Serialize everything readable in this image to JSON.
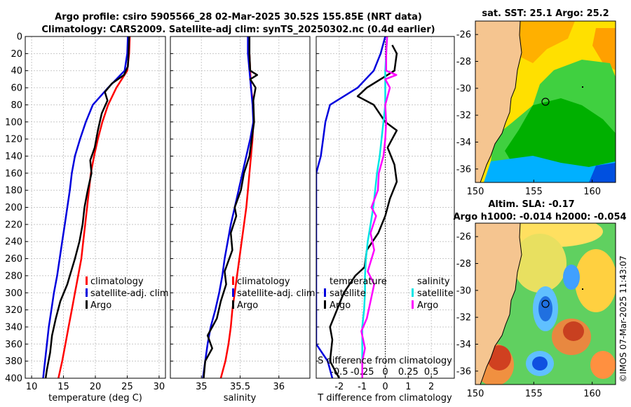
{
  "title": {
    "line1": "Argo profile: csiro 5905566_28 02-Mar-2025 30.52S 155.85E (NRT data)",
    "line2": "Climatology: CARS2009. Satellite-adj clim: synTS_20250302.nc (0.4d earlier)"
  },
  "credit": "©IMOS 07-Mar-2025 11:43:07",
  "colors": {
    "climatology": "#ff0000",
    "satellite": "#0000dd",
    "argo": "#000000",
    "sal_satellite": "#00e5e5",
    "sal_argo": "#ff00ff",
    "land": "#f5c590",
    "coast": "#000000",
    "grid": "#c8c8c8"
  },
  "chart_data": [
    {
      "id": "temperature",
      "type": "line",
      "xlabel": "temperature (deg C)",
      "ylabel": "",
      "xlim": [
        9,
        31
      ],
      "ylim": [
        400,
        0
      ],
      "xticks": [
        10,
        15,
        20,
        25,
        30
      ],
      "yticks": [
        0,
        20,
        40,
        60,
        80,
        100,
        120,
        140,
        160,
        180,
        200,
        220,
        240,
        260,
        280,
        300,
        320,
        340,
        360,
        380,
        400
      ],
      "legend": [
        "climatology",
        "satellite-adj. clim",
        "Argo"
      ],
      "series": [
        {
          "name": "climatology",
          "color": "#ff0000",
          "points": [
            [
              25.4,
              0
            ],
            [
              25.3,
              20
            ],
            [
              25.0,
              40
            ],
            [
              23.3,
              60
            ],
            [
              22.0,
              80
            ],
            [
              21.1,
              100
            ],
            [
              20.4,
              120
            ],
            [
              19.8,
              140
            ],
            [
              19.3,
              160
            ],
            [
              19.0,
              180
            ],
            [
              18.7,
              200
            ],
            [
              18.4,
              220
            ],
            [
              18.1,
              240
            ],
            [
              17.8,
              260
            ],
            [
              17.3,
              280
            ],
            [
              16.8,
              300
            ],
            [
              16.3,
              320
            ],
            [
              15.8,
              340
            ],
            [
              15.3,
              360
            ],
            [
              14.8,
              380
            ],
            [
              14.2,
              400
            ]
          ]
        },
        {
          "name": "satellite-adj. clim",
          "color": "#0000dd",
          "points": [
            [
              25.1,
              0
            ],
            [
              25.0,
              20
            ],
            [
              24.6,
              40
            ],
            [
              22.0,
              60
            ],
            [
              19.6,
              80
            ],
            [
              18.5,
              100
            ],
            [
              17.6,
              120
            ],
            [
              16.8,
              140
            ],
            [
              16.3,
              160
            ],
            [
              16.0,
              180
            ],
            [
              15.6,
              200
            ],
            [
              15.2,
              220
            ],
            [
              14.8,
              240
            ],
            [
              14.4,
              260
            ],
            [
              14.0,
              280
            ],
            [
              13.5,
              300
            ],
            [
              13.1,
              320
            ],
            [
              12.7,
              340
            ],
            [
              12.4,
              360
            ],
            [
              12.1,
              380
            ],
            [
              11.8,
              400
            ]
          ]
        },
        {
          "name": "Argo",
          "color": "#000000",
          "points": [
            [
              25.3,
              0
            ],
            [
              25.2,
              20
            ],
            [
              25.1,
              35
            ],
            [
              24.5,
              45
            ],
            [
              22.6,
              55
            ],
            [
              21.5,
              65
            ],
            [
              21.9,
              75
            ],
            [
              21.0,
              90
            ],
            [
              20.4,
              110
            ],
            [
              19.9,
              130
            ],
            [
              19.2,
              145
            ],
            [
              19.4,
              160
            ],
            [
              18.8,
              180
            ],
            [
              18.3,
              200
            ],
            [
              18.0,
              220
            ],
            [
              17.5,
              240
            ],
            [
              16.8,
              260
            ],
            [
              16.0,
              280
            ],
            [
              15.6,
              290
            ],
            [
              14.5,
              310
            ],
            [
              13.8,
              330
            ],
            [
              13.2,
              350
            ],
            [
              12.9,
              370
            ],
            [
              12.4,
              390
            ],
            [
              12.2,
              400
            ]
          ]
        }
      ]
    },
    {
      "id": "salinity",
      "type": "line",
      "xlabel": "salinity",
      "ylabel": "",
      "xlim": [
        34.6,
        36.4
      ],
      "ylim": [
        400,
        0
      ],
      "xticks": [
        35,
        35.5,
        36
      ],
      "legend": [
        "climatology",
        "satellite-adj. clim",
        "Argo"
      ],
      "series": [
        {
          "name": "climatology",
          "color": "#ff0000",
          "points": [
            [
              35.6,
              0
            ],
            [
              35.62,
              20
            ],
            [
              35.63,
              40
            ],
            [
              35.64,
              60
            ],
            [
              35.67,
              80
            ],
            [
              35.67,
              100
            ],
            [
              35.66,
              120
            ],
            [
              35.64,
              140
            ],
            [
              35.62,
              160
            ],
            [
              35.6,
              180
            ],
            [
              35.58,
              200
            ],
            [
              35.55,
              220
            ],
            [
              35.52,
              240
            ],
            [
              35.49,
              260
            ],
            [
              35.46,
              280
            ],
            [
              35.43,
              300
            ],
            [
              35.4,
              320
            ],
            [
              35.38,
              340
            ],
            [
              35.35,
              360
            ],
            [
              35.31,
              380
            ],
            [
              35.25,
              400
            ]
          ]
        },
        {
          "name": "satellite-adj. clim",
          "color": "#0000dd",
          "points": [
            [
              35.6,
              0
            ],
            [
              35.6,
              20
            ],
            [
              35.62,
              40
            ],
            [
              35.64,
              60
            ],
            [
              35.66,
              80
            ],
            [
              35.67,
              100
            ],
            [
              35.63,
              120
            ],
            [
              35.58,
              140
            ],
            [
              35.53,
              160
            ],
            [
              35.48,
              180
            ],
            [
              35.43,
              200
            ],
            [
              35.38,
              220
            ],
            [
              35.34,
              240
            ],
            [
              35.3,
              260
            ],
            [
              35.27,
              280
            ],
            [
              35.23,
              300
            ],
            [
              35.18,
              320
            ],
            [
              35.12,
              340
            ],
            [
              35.08,
              360
            ],
            [
              35.05,
              380
            ],
            [
              35.02,
              400
            ]
          ]
        },
        {
          "name": "Argo",
          "color": "#000000",
          "points": [
            [
              35.62,
              0
            ],
            [
              35.62,
              20
            ],
            [
              35.63,
              40
            ],
            [
              35.72,
              45
            ],
            [
              35.63,
              50
            ],
            [
              35.7,
              60
            ],
            [
              35.67,
              75
            ],
            [
              35.68,
              100
            ],
            [
              35.65,
              120
            ],
            [
              35.62,
              140
            ],
            [
              35.55,
              160
            ],
            [
              35.51,
              180
            ],
            [
              35.43,
              200
            ],
            [
              35.45,
              210
            ],
            [
              35.38,
              230
            ],
            [
              35.4,
              250
            ],
            [
              35.3,
              275
            ],
            [
              35.32,
              290
            ],
            [
              35.25,
              310
            ],
            [
              35.2,
              330
            ],
            [
              35.08,
              350
            ],
            [
              35.14,
              365
            ],
            [
              35.05,
              380
            ],
            [
              35.03,
              400
            ]
          ]
        }
      ]
    },
    {
      "id": "difference",
      "type": "line",
      "xlabel": "T difference from climatology",
      "xlabel_top": "S difference from climatology",
      "xlim": [
        -3,
        3
      ],
      "xticks": [
        -2,
        -1,
        0,
        1,
        2
      ],
      "xlim_top": [
        -0.75,
        0.75
      ],
      "xticks_top": [
        -0.5,
        -0.25,
        0,
        0.25,
        0.5
      ],
      "xticklabels_top": [
        "-0.5",
        "-0.25",
        "0",
        "0.25",
        "0.5"
      ],
      "ylim": [
        400,
        0
      ],
      "legend_temperature": [
        "temperature",
        "satellite",
        "Argo"
      ],
      "legend_salinity": [
        "salinity",
        "satellite",
        "Argo"
      ],
      "series": [
        {
          "name": "T satellite",
          "color": "#0000dd",
          "points": [
            [
              0,
              0
            ],
            [
              -0.2,
              20
            ],
            [
              -0.5,
              40
            ],
            [
              -1.2,
              60
            ],
            [
              -2.4,
              80
            ],
            [
              -2.6,
              100
            ],
            [
              -2.7,
              120
            ],
            [
              -2.8,
              140
            ],
            [
              -3.0,
              160
            ],
            [
              -3.0,
              180
            ],
            [
              -3.0,
              200
            ],
            [
              -3.0,
              220
            ],
            [
              -3.0,
              240
            ],
            [
              -3.0,
              260
            ],
            [
              -3.0,
              280
            ],
            [
              -3.0,
              300
            ],
            [
              -3.0,
              320
            ],
            [
              -3.0,
              340
            ],
            [
              -3.0,
              360
            ],
            [
              -2.5,
              380
            ],
            [
              -2.3,
              400
            ]
          ]
        },
        {
          "name": "T Argo",
          "color": "#000000",
          "points": [
            [
              0.3,
              10
            ],
            [
              0.5,
              20
            ],
            [
              0.4,
              40
            ],
            [
              -0.8,
              60
            ],
            [
              -1.2,
              70
            ],
            [
              -0.5,
              80
            ],
            [
              0,
              100
            ],
            [
              0.5,
              110
            ],
            [
              0.1,
              130
            ],
            [
              0.4,
              150
            ],
            [
              0.5,
              170
            ],
            [
              0.2,
              190
            ],
            [
              0,
              210
            ],
            [
              -0.3,
              230
            ],
            [
              -0.8,
              250
            ],
            [
              -0.9,
              270
            ],
            [
              -1.3,
              280
            ],
            [
              -1.8,
              300
            ],
            [
              -2.1,
              320
            ],
            [
              -2.4,
              340
            ],
            [
              -2.3,
              355
            ],
            [
              -2.4,
              380
            ],
            [
              -2.0,
              400
            ]
          ]
        },
        {
          "name": "S satellite",
          "color": "#00e5e5",
          "points": [
            [
              0.02,
              0
            ],
            [
              0.01,
              20
            ],
            [
              0,
              40
            ],
            [
              0,
              60
            ],
            [
              0,
              80
            ],
            [
              -0.02,
              100
            ],
            [
              -0.04,
              120
            ],
            [
              -0.06,
              140
            ],
            [
              -0.09,
              160
            ],
            [
              -0.11,
              180
            ],
            [
              -0.13,
              200
            ],
            [
              -0.16,
              220
            ],
            [
              -0.19,
              240
            ],
            [
              -0.21,
              260
            ],
            [
              -0.22,
              280
            ],
            [
              -0.22,
              300
            ],
            [
              -0.23,
              320
            ],
            [
              -0.25,
              340
            ],
            [
              -0.25,
              360
            ],
            [
              -0.25,
              380
            ],
            [
              -0.25,
              400
            ]
          ]
        },
        {
          "name": "S Argo",
          "color": "#ff00ff",
          "points": [
            [
              0.02,
              0
            ],
            [
              0.01,
              20
            ],
            [
              0.01,
              40
            ],
            [
              0.12,
              45
            ],
            [
              0,
              50
            ],
            [
              0.05,
              60
            ],
            [
              0,
              80
            ],
            [
              0.01,
              100
            ],
            [
              0,
              120
            ],
            [
              -0.02,
              140
            ],
            [
              -0.07,
              160
            ],
            [
              -0.08,
              180
            ],
            [
              -0.15,
              200
            ],
            [
              -0.1,
              210
            ],
            [
              -0.16,
              230
            ],
            [
              -0.12,
              250
            ],
            [
              -0.19,
              275
            ],
            [
              -0.12,
              290
            ],
            [
              -0.16,
              310
            ],
            [
              -0.2,
              330
            ],
            [
              -0.26,
              345
            ],
            [
              -0.22,
              365
            ],
            [
              -0.25,
              380
            ],
            [
              -0.25,
              400
            ]
          ]
        }
      ]
    },
    {
      "id": "sst_map",
      "type": "heatmap",
      "title": "sat. SST: 25.1 Argo: 25.2",
      "xlim": [
        150,
        162
      ],
      "ylim": [
        -37,
        -25
      ],
      "xticks": [
        150,
        155,
        160
      ],
      "yticks": [
        -26,
        -28,
        -30,
        -32,
        -34,
        -36
      ],
      "argo_position": [
        155.85,
        -30.52
      ]
    },
    {
      "id": "sla_map",
      "type": "heatmap",
      "title_line1": "Altim. SLA: -0.17",
      "title_line2": "Argo h1000: -0.014 h2000: -0.054",
      "xlim": [
        150,
        162
      ],
      "ylim": [
        -37,
        -25
      ],
      "xticks": [
        150,
        155,
        160
      ],
      "yticks": [
        -26,
        -28,
        -30,
        -32,
        -34,
        -36
      ],
      "argo_position": [
        155.85,
        -30.52
      ]
    }
  ]
}
